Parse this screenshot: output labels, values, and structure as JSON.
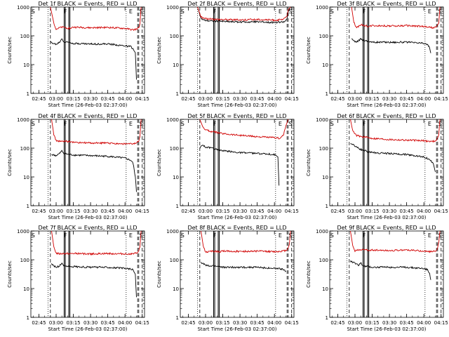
{
  "chart_data": [
    {
      "type": "line",
      "title": "Det 1f BLACK = Events, RED = LLD",
      "xlabel": "Start Time (26-Feb-03 02:37:00)",
      "ylabel": "Counts/sec",
      "yscale": "log",
      "ylim": [
        1,
        1000
      ],
      "xlim": [
        "02:38",
        "04:17"
      ],
      "x_ticks": [
        "02:45",
        "03:00",
        "03:15",
        "03:30",
        "03:45",
        "04:00",
        "04:15"
      ],
      "y_ticks": [
        "1",
        "10",
        "100",
        "1000"
      ],
      "markers": [
        "S",
        "F",
        "E",
        "S"
      ],
      "series": [
        {
          "name": "Events",
          "color": "#000000",
          "t": [
            "02:55",
            "03:00",
            "03:03",
            "03:05",
            "03:07",
            "03:12",
            "03:15",
            "03:30",
            "03:45",
            "04:00",
            "04:05",
            "04:07",
            "04:09",
            "04:10"
          ],
          "values": [
            60,
            50,
            60,
            80,
            60,
            60,
            55,
            52,
            52,
            45,
            42,
            35,
            25,
            3
          ]
        },
        {
          "name": "LLD",
          "color": "#d00000",
          "t": [
            "02:55",
            "02:58",
            "03:00",
            "03:03",
            "03:06",
            "03:12",
            "03:15",
            "03:30",
            "03:45",
            "04:00",
            "04:07",
            "04:10",
            "04:12",
            "04:13",
            "04:14"
          ],
          "values": [
            1000,
            280,
            170,
            190,
            200,
            180,
            200,
            190,
            195,
            180,
            160,
            170,
            190,
            260,
            1000
          ]
        }
      ]
    },
    {
      "type": "line",
      "title": "Det 2f BLACK = Events, RED = LLD",
      "xlabel": "Start Time (26-Feb-03 02:37:00)",
      "ylabel": "Counts/sec",
      "yscale": "log",
      "ylim": [
        1,
        1000
      ],
      "xlim": [
        "02:38",
        "04:17"
      ],
      "x_ticks": [
        "02:45",
        "03:00",
        "03:15",
        "03:30",
        "03:45",
        "04:00",
        "04:15"
      ],
      "y_ticks": [
        "1",
        "10",
        "100",
        "1000"
      ],
      "markers": [
        "S",
        "F",
        "E",
        "S"
      ],
      "series": [
        {
          "name": "Events",
          "color": "#000000",
          "t": [
            "02:53",
            "02:56",
            "02:59",
            "03:05",
            "03:15",
            "03:30",
            "03:45",
            "04:00",
            "04:07",
            "04:09",
            "04:11",
            "04:12",
            "04:14"
          ],
          "values": [
            1000,
            400,
            350,
            330,
            320,
            300,
            310,
            290,
            300,
            310,
            400,
            700,
            1000
          ]
        },
        {
          "name": "LLD",
          "color": "#d00000",
          "t": [
            "02:53",
            "02:56",
            "02:59",
            "03:05",
            "03:15",
            "03:30",
            "03:45",
            "04:00",
            "04:07",
            "04:09",
            "04:11",
            "04:12",
            "04:14"
          ],
          "values": [
            1000,
            450,
            400,
            380,
            370,
            360,
            370,
            350,
            360,
            400,
            500,
            800,
            1000
          ]
        }
      ]
    },
    {
      "type": "line",
      "title": "Det 3f BLACK = Events, RED = LLD",
      "xlabel": "Start Time (26-Feb-03 02:37:00)",
      "ylabel": "Counts/sec",
      "yscale": "log",
      "ylim": [
        1,
        1000
      ],
      "xlim": [
        "02:38",
        "04:17"
      ],
      "x_ticks": [
        "02:45",
        "03:00",
        "03:15",
        "03:30",
        "03:45",
        "04:00",
        "04:15"
      ],
      "y_ticks": [
        "1",
        "10",
        "100",
        "1000"
      ],
      "markers": [
        "S",
        "F",
        "E",
        "S"
      ],
      "series": [
        {
          "name": "Events",
          "color": "#000000",
          "t": [
            "02:57",
            "03:00",
            "03:03",
            "03:05",
            "03:07",
            "03:12",
            "03:15",
            "03:30",
            "03:45",
            "04:00",
            "04:03",
            "04:05",
            "04:06"
          ],
          "values": [
            80,
            60,
            65,
            80,
            70,
            65,
            60,
            60,
            60,
            55,
            50,
            40,
            25
          ]
        },
        {
          "name": "LLD",
          "color": "#d00000",
          "t": [
            "02:57",
            "02:59",
            "03:01",
            "03:04",
            "03:06",
            "03:12",
            "03:15",
            "03:30",
            "03:45",
            "04:00",
            "04:08",
            "04:11",
            "04:13",
            "04:14"
          ],
          "values": [
            1000,
            300,
            200,
            220,
            240,
            210,
            230,
            220,
            225,
            210,
            190,
            200,
            280,
            1000
          ]
        }
      ]
    },
    {
      "type": "line",
      "title": "Det 4f BLACK = Events, RED = LLD",
      "xlabel": "Start Time (26-Feb-03 02:37:00)",
      "ylabel": "Counts/sec",
      "yscale": "log",
      "ylim": [
        1,
        1000
      ],
      "xlim": [
        "02:38",
        "04:17"
      ],
      "x_ticks": [
        "02:45",
        "03:00",
        "03:15",
        "03:30",
        "03:45",
        "04:00",
        "04:15"
      ],
      "y_ticks": [
        "1",
        "10",
        "100",
        "1000"
      ],
      "markers": [
        "S",
        "F",
        "E",
        "S"
      ],
      "series": [
        {
          "name": "Events",
          "color": "#000000",
          "t": [
            "02:56",
            "03:00",
            "03:03",
            "03:05",
            "03:07",
            "03:12",
            "03:15",
            "03:30",
            "03:45",
            "04:00",
            "04:05",
            "04:07",
            "04:09",
            "04:10"
          ],
          "values": [
            60,
            55,
            65,
            80,
            65,
            60,
            58,
            55,
            52,
            45,
            38,
            30,
            10,
            3
          ]
        },
        {
          "name": "LLD",
          "color": "#d00000",
          "t": [
            "02:56",
            "02:58",
            "03:00",
            "03:03",
            "03:06",
            "03:12",
            "03:15",
            "03:30",
            "03:45",
            "04:00",
            "04:07",
            "04:10",
            "04:12",
            "04:13",
            "04:14"
          ],
          "values": [
            1000,
            300,
            180,
            170,
            175,
            170,
            160,
            150,
            150,
            140,
            140,
            150,
            180,
            250,
            1000
          ]
        }
      ]
    },
    {
      "type": "line",
      "title": "Det 5f BLACK = Events, RED = LLD",
      "xlabel": "Start Time (26-Feb-03 02:37:00)",
      "ylabel": "Counts/sec",
      "yscale": "log",
      "ylim": [
        1,
        1000
      ],
      "xlim": [
        "02:38",
        "04:17"
      ],
      "x_ticks": [
        "02:45",
        "03:00",
        "03:15",
        "03:30",
        "03:45",
        "04:00",
        "04:15"
      ],
      "y_ticks": [
        "1",
        "10",
        "100",
        "1000"
      ],
      "markers": [
        "S",
        "F",
        "E",
        "S"
      ],
      "series": [
        {
          "name": "Events",
          "color": "#000000",
          "t": [
            "02:55",
            "02:57",
            "03:00",
            "03:05",
            "03:10",
            "03:15",
            "03:30",
            "03:45",
            "04:00",
            "04:03",
            "04:04"
          ],
          "values": [
            100,
            130,
            110,
            100,
            90,
            80,
            70,
            65,
            60,
            50,
            5
          ]
        },
        {
          "name": "LLD",
          "color": "#d00000",
          "t": [
            "02:55",
            "02:58",
            "03:01",
            "03:05",
            "03:10",
            "03:15",
            "03:30",
            "03:45",
            "04:00",
            "04:05",
            "04:08",
            "04:10",
            "04:12"
          ],
          "values": [
            1000,
            500,
            420,
            380,
            350,
            320,
            280,
            250,
            230,
            220,
            300,
            600,
            1000
          ]
        }
      ]
    },
    {
      "type": "line",
      "title": "Det 6f BLACK = Events, RED = LLD",
      "xlabel": "Start Time (26-Feb-03 02:37:00)",
      "ylabel": "Counts/sec",
      "yscale": "log",
      "ylim": [
        1,
        1000
      ],
      "xlim": [
        "02:38",
        "04:17"
      ],
      "x_ticks": [
        "02:45",
        "03:00",
        "03:15",
        "03:30",
        "03:45",
        "04:00",
        "04:15"
      ],
      "y_ticks": [
        "1",
        "10",
        "100",
        "1000"
      ],
      "markers": [
        "S",
        "F",
        "E",
        "S"
      ],
      "series": [
        {
          "name": "Events",
          "color": "#000000",
          "t": [
            "02:56",
            "03:00",
            "03:03",
            "03:05",
            "03:07",
            "03:12",
            "03:15",
            "03:30",
            "03:45",
            "04:00",
            "04:05",
            "04:08",
            "04:10"
          ],
          "values": [
            150,
            120,
            100,
            90,
            85,
            75,
            70,
            65,
            60,
            50,
            40,
            30,
            15
          ]
        },
        {
          "name": "LLD",
          "color": "#d00000",
          "t": [
            "02:56",
            "02:58",
            "03:01",
            "03:04",
            "03:06",
            "03:12",
            "03:15",
            "03:30",
            "03:45",
            "04:00",
            "04:07",
            "04:10",
            "04:12",
            "04:13",
            "04:14"
          ],
          "values": [
            1000,
            400,
            280,
            260,
            250,
            230,
            220,
            200,
            190,
            180,
            170,
            180,
            220,
            300,
            1000
          ]
        }
      ]
    },
    {
      "type": "line",
      "title": "Det 7f BLACK = Events, RED = LLD",
      "xlabel": "Start Time (26-Feb-03 02:37:00)",
      "ylabel": "Counts/sec",
      "yscale": "log",
      "ylim": [
        1,
        1000
      ],
      "xlim": [
        "02:38",
        "04:17"
      ],
      "x_ticks": [
        "02:45",
        "03:00",
        "03:15",
        "03:30",
        "03:45",
        "04:00",
        "04:15"
      ],
      "y_ticks": [
        "1",
        "10",
        "100",
        "1000"
      ],
      "markers": [
        "S",
        "F",
        "E",
        "S"
      ],
      "series": [
        {
          "name": "Events",
          "color": "#000000",
          "t": [
            "02:56",
            "03:00",
            "03:03",
            "03:05",
            "03:07",
            "03:12",
            "03:15",
            "03:30",
            "03:45",
            "04:00",
            "04:05",
            "04:07",
            "04:09",
            "04:10"
          ],
          "values": [
            70,
            55,
            60,
            80,
            60,
            60,
            58,
            55,
            55,
            50,
            48,
            45,
            30,
            5
          ]
        },
        {
          "name": "LLD",
          "color": "#d00000",
          "t": [
            "02:56",
            "02:58",
            "03:00",
            "03:03",
            "03:06",
            "03:12",
            "03:15",
            "03:30",
            "03:45",
            "04:00",
            "04:07",
            "04:10",
            "04:12",
            "04:13",
            "04:14"
          ],
          "values": [
            1000,
            280,
            170,
            160,
            165,
            160,
            165,
            160,
            165,
            160,
            160,
            170,
            200,
            280,
            1000
          ]
        }
      ]
    },
    {
      "type": "line",
      "title": "Det 8f BLACK = Events, RED = LLD",
      "xlabel": "Start Time (26-Feb-03 02:37:00)",
      "ylabel": "Counts/sec",
      "yscale": "log",
      "ylim": [
        1,
        1000
      ],
      "xlim": [
        "02:38",
        "04:17"
      ],
      "x_ticks": [
        "02:45",
        "03:00",
        "03:15",
        "03:30",
        "03:45",
        "04:00",
        "04:15"
      ],
      "y_ticks": [
        "1",
        "10",
        "100",
        "1000"
      ],
      "markers": [
        "S",
        "F",
        "E",
        "S"
      ],
      "series": [
        {
          "name": "Events",
          "color": "#000000",
          "t": [
            "02:56",
            "03:00",
            "03:03",
            "03:05",
            "03:07",
            "03:12",
            "03:15",
            "03:30",
            "03:45",
            "04:00",
            "04:05",
            "04:08",
            "04:10"
          ],
          "values": [
            80,
            65,
            60,
            60,
            62,
            58,
            55,
            55,
            55,
            50,
            48,
            45,
            40
          ]
        },
        {
          "name": "LLD",
          "color": "#d00000",
          "t": [
            "02:56",
            "02:58",
            "03:00",
            "03:03",
            "03:06",
            "03:12",
            "03:15",
            "03:30",
            "03:45",
            "04:00",
            "04:07",
            "04:10",
            "04:12",
            "04:13",
            "04:14"
          ],
          "values": [
            1000,
            300,
            180,
            190,
            200,
            190,
            200,
            195,
            200,
            190,
            200,
            210,
            260,
            350,
            1000
          ]
        }
      ]
    },
    {
      "type": "line",
      "title": "Det 9f BLACK = Events, RED = LLD",
      "xlabel": "Start Time (26-Feb-03 02:37:00)",
      "ylabel": "Counts/sec",
      "yscale": "log",
      "ylim": [
        1,
        1000
      ],
      "xlim": [
        "02:38",
        "04:17"
      ],
      "x_ticks": [
        "02:45",
        "03:00",
        "03:15",
        "03:30",
        "03:45",
        "04:00",
        "04:15"
      ],
      "y_ticks": [
        "1",
        "10",
        "100",
        "1000"
      ],
      "markers": [
        "S",
        "F",
        "E",
        "S"
      ],
      "series": [
        {
          "name": "Events",
          "color": "#000000",
          "t": [
            "02:56",
            "03:00",
            "03:03",
            "03:05",
            "03:07",
            "03:12",
            "03:15",
            "03:30",
            "03:45",
            "04:00",
            "04:03",
            "04:05",
            "04:06"
          ],
          "values": [
            90,
            75,
            65,
            80,
            60,
            58,
            55,
            55,
            55,
            50,
            45,
            35,
            20
          ]
        },
        {
          "name": "LLD",
          "color": "#d00000",
          "t": [
            "02:56",
            "02:58",
            "03:00",
            "03:03",
            "03:06",
            "03:12",
            "03:15",
            "03:30",
            "03:45",
            "04:00",
            "04:07",
            "04:10",
            "04:12",
            "04:13",
            "04:14"
          ],
          "values": [
            1000,
            320,
            200,
            220,
            230,
            210,
            220,
            210,
            220,
            200,
            190,
            200,
            260,
            400,
            1000
          ]
        }
      ]
    }
  ]
}
